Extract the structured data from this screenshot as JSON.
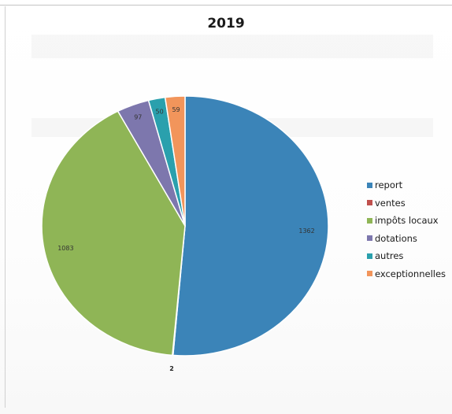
{
  "chart_data": {
    "type": "pie",
    "title": "2019",
    "categories": [
      "report",
      "ventes",
      "impôts locaux",
      "dotations",
      "autres",
      "exceptionnelles"
    ],
    "values": [
      1362,
      2,
      1083,
      97,
      50,
      59
    ],
    "slice_labels": [
      "1362",
      "2",
      "1083",
      "97",
      "50",
      "59"
    ],
    "colors": [
      "#3b84b8",
      "#c0504d",
      "#8fb556",
      "#7d77ad",
      "#2aa0ad",
      "#f2955b"
    ],
    "legend_position": "right",
    "start_angle": "top, clockwise"
  }
}
